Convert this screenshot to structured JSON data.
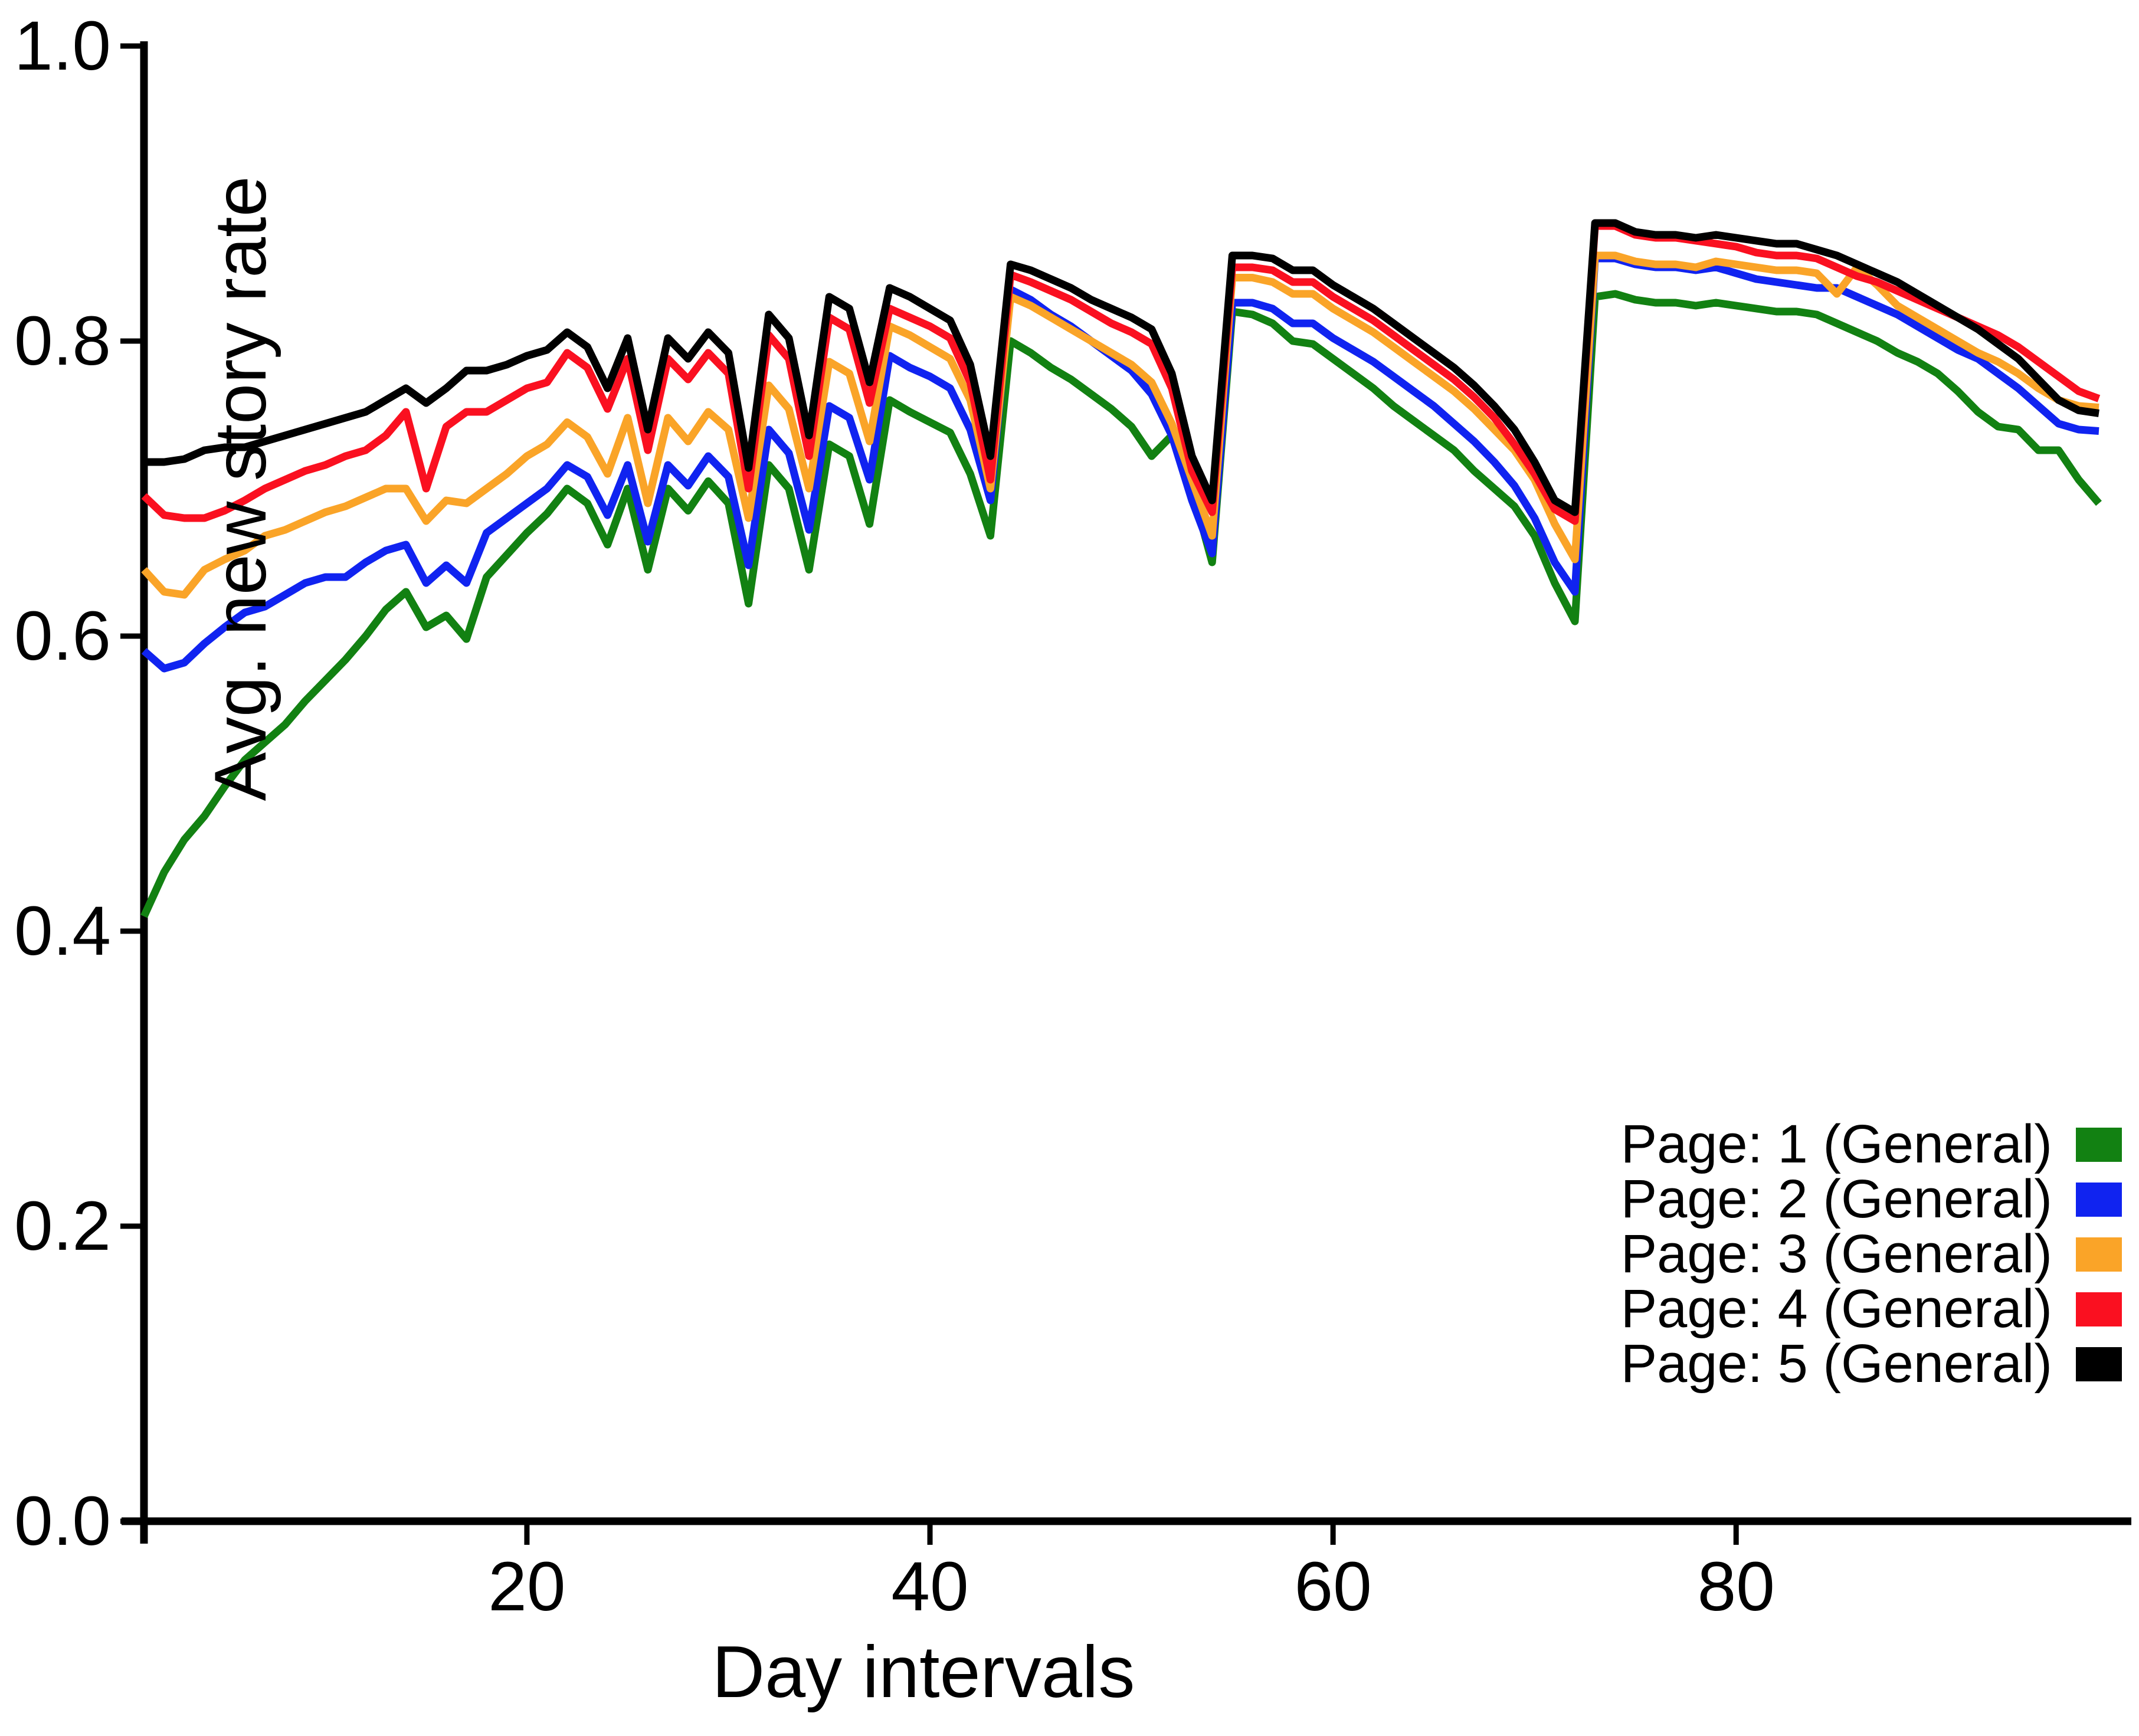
{
  "figure": {
    "type_note": "line chart, white background, left and bottom spines only, no grid",
    "background": "#ffffff",
    "axis_color": "#000000"
  },
  "chart_data": {
    "type": "line",
    "title": "",
    "xlabel": "Day intervals",
    "ylabel": "Avg. new story rate",
    "xlim": [
      1,
      99.5
    ],
    "ylim": [
      0.0,
      1.0
    ],
    "grid": false,
    "legend_position": "lower right",
    "x_tick_labels": [
      "20",
      "40",
      "60",
      "80"
    ],
    "x_tick_values": [
      20,
      40,
      60,
      80
    ],
    "y_tick_labels": [
      "0.0",
      "0.2",
      "0.4",
      "0.6",
      "0.8",
      "1.0"
    ],
    "y_tick_values": [
      0.0,
      0.2,
      0.4,
      0.6,
      0.8,
      1.0
    ],
    "x": [
      1,
      2,
      3,
      4,
      5,
      6,
      7,
      8,
      9,
      10,
      11,
      12,
      13,
      14,
      15,
      16,
      17,
      18,
      19,
      20,
      21,
      22,
      23,
      24,
      25,
      26,
      27,
      28,
      29,
      30,
      31,
      32,
      33,
      34,
      35,
      36,
      37,
      38,
      39,
      40,
      41,
      42,
      43,
      44,
      45,
      46,
      47,
      48,
      49,
      50,
      51,
      52,
      53,
      54,
      55,
      56,
      57,
      58,
      59,
      60,
      61,
      62,
      63,
      64,
      65,
      66,
      67,
      68,
      69,
      70,
      71,
      72,
      73,
      74,
      75,
      76,
      77,
      78,
      79,
      80,
      81,
      82,
      83,
      84,
      85,
      86,
      87,
      88,
      89,
      90,
      91,
      92,
      93,
      94,
      95,
      96,
      97,
      98
    ],
    "series": [
      {
        "name": "Page: 1 (General)",
        "color": "#128112",
        "values": [
          0.41,
          0.44,
          0.462,
          0.478,
          0.498,
          0.516,
          0.528,
          0.54,
          0.556,
          0.57,
          0.584,
          0.6,
          0.618,
          0.63,
          0.606,
          0.614,
          0.598,
          0.64,
          0.655,
          0.67,
          0.683,
          0.7,
          0.69,
          0.662,
          0.7,
          0.645,
          0.7,
          0.685,
          0.705,
          0.69,
          0.622,
          0.716,
          0.7,
          0.645,
          0.73,
          0.722,
          0.676,
          0.76,
          0.752,
          0.745,
          0.738,
          0.71,
          0.668,
          0.8,
          0.792,
          0.782,
          0.774,
          0.764,
          0.754,
          0.742,
          0.722,
          0.736,
          0.7,
          0.65,
          0.82,
          0.818,
          0.812,
          0.8,
          0.798,
          0.788,
          0.778,
          0.768,
          0.756,
          0.746,
          0.736,
          0.726,
          0.712,
          0.7,
          0.688,
          0.668,
          0.636,
          0.61,
          0.83,
          0.832,
          0.828,
          0.826,
          0.826,
          0.824,
          0.826,
          0.824,
          0.822,
          0.82,
          0.82,
          0.818,
          0.812,
          0.806,
          0.8,
          0.792,
          0.786,
          0.778,
          0.766,
          0.752,
          0.742,
          0.74,
          0.726,
          0.726,
          0.706,
          0.69
        ]
      },
      {
        "name": "Page: 2 (General)",
        "color": "#1023F0",
        "values": [
          0.59,
          0.578,
          0.582,
          0.595,
          0.606,
          0.616,
          0.62,
          0.628,
          0.636,
          0.64,
          0.64,
          0.65,
          0.658,
          0.662,
          0.636,
          0.648,
          0.636,
          0.67,
          0.68,
          0.69,
          0.7,
          0.716,
          0.708,
          0.682,
          0.716,
          0.664,
          0.716,
          0.702,
          0.722,
          0.708,
          0.648,
          0.74,
          0.724,
          0.672,
          0.756,
          0.748,
          0.706,
          0.79,
          0.782,
          0.776,
          0.768,
          0.74,
          0.692,
          0.835,
          0.828,
          0.818,
          0.81,
          0.8,
          0.79,
          0.78,
          0.764,
          0.736,
          0.692,
          0.656,
          0.826,
          0.826,
          0.822,
          0.812,
          0.812,
          0.802,
          0.794,
          0.786,
          0.776,
          0.766,
          0.756,
          0.744,
          0.732,
          0.718,
          0.702,
          0.68,
          0.65,
          0.63,
          0.856,
          0.856,
          0.852,
          0.85,
          0.85,
          0.848,
          0.85,
          0.846,
          0.842,
          0.84,
          0.838,
          0.836,
          0.836,
          0.83,
          0.824,
          0.818,
          0.81,
          0.802,
          0.794,
          0.788,
          0.778,
          0.768,
          0.756,
          0.744,
          0.74,
          0.739
        ]
      },
      {
        "name": "Page: 3 (General)",
        "color": "#FAA428",
        "values": [
          0.645,
          0.63,
          0.628,
          0.645,
          0.652,
          0.658,
          0.668,
          0.672,
          0.678,
          0.684,
          0.688,
          0.694,
          0.7,
          0.7,
          0.678,
          0.692,
          0.69,
          0.7,
          0.71,
          0.722,
          0.73,
          0.745,
          0.735,
          0.71,
          0.748,
          0.69,
          0.748,
          0.732,
          0.752,
          0.74,
          0.68,
          0.77,
          0.754,
          0.7,
          0.786,
          0.778,
          0.732,
          0.81,
          0.804,
          0.796,
          0.788,
          0.76,
          0.7,
          0.83,
          0.824,
          0.816,
          0.808,
          0.8,
          0.792,
          0.784,
          0.772,
          0.744,
          0.706,
          0.668,
          0.843,
          0.843,
          0.84,
          0.832,
          0.832,
          0.822,
          0.814,
          0.806,
          0.796,
          0.786,
          0.776,
          0.766,
          0.754,
          0.74,
          0.726,
          0.706,
          0.676,
          0.652,
          0.858,
          0.858,
          0.854,
          0.852,
          0.852,
          0.85,
          0.854,
          0.852,
          0.85,
          0.848,
          0.848,
          0.846,
          0.832,
          0.85,
          0.838,
          0.824,
          0.816,
          0.808,
          0.8,
          0.792,
          0.786,
          0.778,
          0.768,
          0.76,
          0.756,
          0.755
        ]
      },
      {
        "name": "Page: 4 (General)",
        "color": "#FA1020",
        "values": [
          0.695,
          0.682,
          0.68,
          0.68,
          0.685,
          0.692,
          0.7,
          0.706,
          0.712,
          0.716,
          0.722,
          0.726,
          0.736,
          0.752,
          0.7,
          0.742,
          0.752,
          0.752,
          0.76,
          0.768,
          0.772,
          0.792,
          0.782,
          0.754,
          0.788,
          0.726,
          0.788,
          0.774,
          0.792,
          0.778,
          0.7,
          0.804,
          0.788,
          0.722,
          0.816,
          0.808,
          0.758,
          0.822,
          0.816,
          0.81,
          0.802,
          0.772,
          0.706,
          0.845,
          0.84,
          0.834,
          0.828,
          0.82,
          0.812,
          0.806,
          0.798,
          0.768,
          0.712,
          0.684,
          0.85,
          0.85,
          0.848,
          0.84,
          0.84,
          0.83,
          0.822,
          0.814,
          0.804,
          0.794,
          0.784,
          0.774,
          0.762,
          0.748,
          0.73,
          0.71,
          0.686,
          0.678,
          0.878,
          0.878,
          0.872,
          0.87,
          0.87,
          0.868,
          0.866,
          0.864,
          0.86,
          0.858,
          0.858,
          0.856,
          0.85,
          0.844,
          0.84,
          0.834,
          0.828,
          0.822,
          0.816,
          0.81,
          0.804,
          0.796,
          0.786,
          0.776,
          0.766,
          0.761
        ]
      },
      {
        "name": "Page: 5 (General)",
        "color": "#000000",
        "values": [
          0.718,
          0.718,
          0.72,
          0.726,
          0.728,
          0.728,
          0.732,
          0.736,
          0.74,
          0.744,
          0.748,
          0.752,
          0.76,
          0.768,
          0.758,
          0.768,
          0.78,
          0.78,
          0.784,
          0.79,
          0.794,
          0.806,
          0.796,
          0.768,
          0.802,
          0.74,
          0.802,
          0.788,
          0.806,
          0.792,
          0.714,
          0.818,
          0.802,
          0.736,
          0.83,
          0.822,
          0.772,
          0.836,
          0.83,
          0.822,
          0.814,
          0.784,
          0.722,
          0.852,
          0.848,
          0.842,
          0.836,
          0.828,
          0.822,
          0.816,
          0.808,
          0.778,
          0.722,
          0.692,
          0.858,
          0.858,
          0.856,
          0.848,
          0.848,
          0.838,
          0.83,
          0.822,
          0.812,
          0.802,
          0.792,
          0.782,
          0.77,
          0.756,
          0.74,
          0.718,
          0.692,
          0.684,
          0.88,
          0.88,
          0.874,
          0.872,
          0.872,
          0.87,
          0.872,
          0.87,
          0.868,
          0.866,
          0.866,
          0.862,
          0.858,
          0.852,
          0.846,
          0.84,
          0.832,
          0.824,
          0.816,
          0.808,
          0.798,
          0.788,
          0.774,
          0.76,
          0.753,
          0.751
        ]
      }
    ],
    "legend": {
      "items": [
        {
          "label": "Page: 1 (General)",
          "color": "#128112"
        },
        {
          "label": "Page: 2 (General)",
          "color": "#1023F0"
        },
        {
          "label": "Page: 3 (General)",
          "color": "#FAA428"
        },
        {
          "label": "Page: 4 (General)",
          "color": "#FA1020"
        },
        {
          "label": "Page: 5 (General)",
          "color": "#000000"
        }
      ]
    }
  }
}
